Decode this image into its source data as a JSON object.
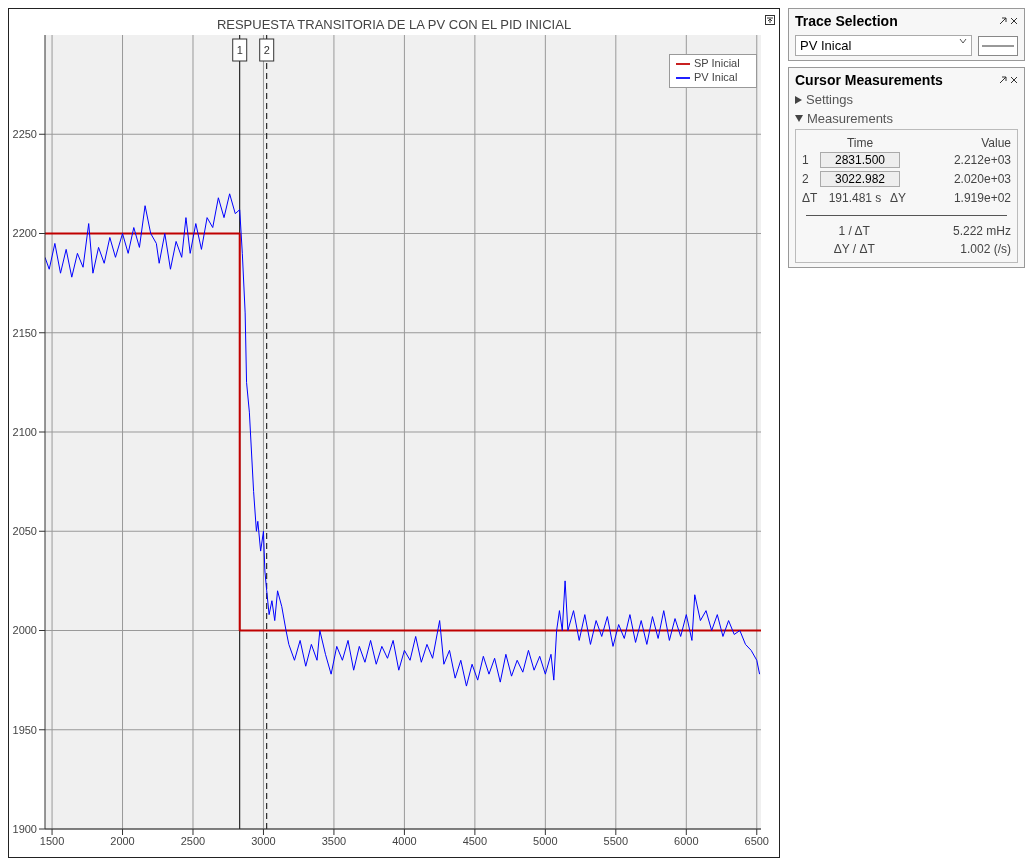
{
  "chart_data": {
    "type": "line",
    "title": "RESPUESTA TRANSITORIA DE LA PV CON EL PID INICIAL",
    "xlim": [
      1450,
      6530
    ],
    "xticks": [
      1500,
      2000,
      2500,
      3000,
      3500,
      4000,
      4500,
      5000,
      5500,
      6000,
      6500
    ],
    "ylim": [
      1900,
      2300
    ],
    "yticks": [
      1900,
      1950,
      2000,
      2050,
      2100,
      2150,
      2200,
      2250
    ],
    "grid": true,
    "legend": "top right",
    "marker": "none",
    "line_style": "solid",
    "series": [
      {
        "name": "SP Inicial",
        "color": "#c00000",
        "x": [
          1450,
          2831.5,
          2831.5,
          6530
        ],
        "values": [
          2200,
          2200,
          2000,
          2000
        ]
      },
      {
        "name": "PV Inical",
        "color": "#0000ff",
        "x": [
          1450,
          1480,
          1520,
          1560,
          1600,
          1640,
          1680,
          1720,
          1760,
          1790,
          1830,
          1870,
          1910,
          1950,
          2000,
          2040,
          2080,
          2120,
          2160,
          2200,
          2240,
          2260,
          2300,
          2340,
          2380,
          2420,
          2450,
          2480,
          2520,
          2560,
          2600,
          2640,
          2680,
          2720,
          2760,
          2800,
          2831.5,
          2850,
          2870,
          2880,
          2900,
          2930,
          2950,
          2960,
          2980,
          3000,
          3010,
          3022.982,
          3040,
          3060,
          3080,
          3100,
          3130,
          3160,
          3180,
          3220,
          3260,
          3300,
          3340,
          3380,
          3400,
          3440,
          3480,
          3520,
          3560,
          3600,
          3640,
          3680,
          3720,
          3760,
          3800,
          3840,
          3880,
          3920,
          3960,
          4000,
          4040,
          4080,
          4120,
          4160,
          4200,
          4250,
          4280,
          4320,
          4360,
          4400,
          4440,
          4480,
          4520,
          4560,
          4600,
          4640,
          4680,
          4720,
          4760,
          4800,
          4840,
          4880,
          4920,
          4960,
          5000,
          5040,
          5060,
          5080,
          5100,
          5120,
          5140,
          5160,
          5200,
          5240,
          5280,
          5320,
          5360,
          5400,
          5440,
          5480,
          5520,
          5560,
          5600,
          5640,
          5680,
          5720,
          5760,
          5800,
          5840,
          5880,
          5920,
          5960,
          6000,
          6040,
          6060,
          6100,
          6140,
          6180,
          6220,
          6260,
          6300,
          6340,
          6380,
          6420,
          6460,
          6500,
          6520
        ],
        "values": [
          2188,
          2182,
          2195,
          2180,
          2192,
          2178,
          2190,
          2183,
          2205,
          2180,
          2193,
          2185,
          2198,
          2188,
          2200,
          2190,
          2203,
          2193,
          2214,
          2200,
          2195,
          2185,
          2200,
          2182,
          2196,
          2188,
          2208,
          2190,
          2205,
          2192,
          2208,
          2203,
          2218,
          2208,
          2220,
          2210,
          2212,
          2190,
          2160,
          2125,
          2110,
          2070,
          2050,
          2055,
          2040,
          2050,
          2030,
          2020,
          2008,
          2015,
          2005,
          2020,
          2012,
          2000,
          1993,
          1985,
          1995,
          1982,
          1993,
          1985,
          2000,
          1988,
          1978,
          1992,
          1985,
          1995,
          1980,
          1992,
          1984,
          1995,
          1983,
          1992,
          1986,
          1995,
          1980,
          1990,
          1985,
          1997,
          1984,
          1993,
          1986,
          2005,
          1983,
          1990,
          1976,
          1985,
          1972,
          1983,
          1975,
          1987,
          1978,
          1986,
          1974,
          1988,
          1977,
          1985,
          1979,
          1990,
          1980,
          1987,
          1978,
          1988,
          1975,
          2000,
          2010,
          2000,
          2025,
          2000,
          2010,
          1995,
          2008,
          1993,
          2005,
          1997,
          2007,
          1992,
          2003,
          1996,
          2008,
          1994,
          2005,
          1993,
          2007,
          1996,
          2010,
          1995,
          2006,
          1997,
          2008,
          1995,
          2018,
          2005,
          2010,
          2000,
          2008,
          1997,
          2005,
          1998,
          2000,
          1993,
          1990,
          1985,
          1978
        ]
      }
    ],
    "ref_lines": [
      {
        "axis": "x",
        "value": 2831.5,
        "color": "#000000",
        "line_style": "solid"
      },
      {
        "axis": "x",
        "value": 3022.982,
        "color": "#000000",
        "line_style": "dashed"
      }
    ],
    "annotations": [
      "1",
      "2",
      "Trace Selection",
      "PV Inical",
      "Cursor Measurements",
      "Settings",
      "Measurements",
      "Time",
      "Value",
      "1",
      "2831.500",
      "2.212e+03",
      "2",
      "3022.982",
      "2.020e+03",
      "ΔT",
      "191.481 s",
      "ΔY",
      "1.919e+02",
      "1 / ΔT",
      "5.222 mHz",
      "ΔY / ΔT",
      "1.002 (/s)"
    ]
  }
}
